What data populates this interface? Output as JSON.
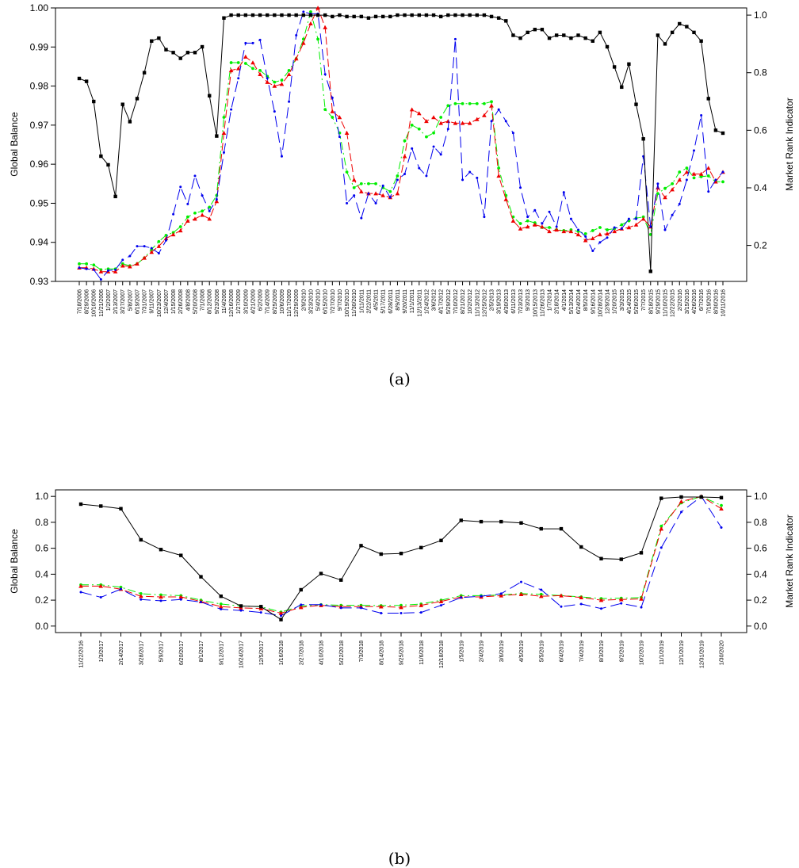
{
  "chart_data": [
    {
      "type": "line",
      "caption": "(a)",
      "ylabel": "Global Balance",
      "ylabel_right": "Market Rank Indicator",
      "ylim": [
        0.93,
        1.0
      ],
      "yticks": [
        0.93,
        0.94,
        0.95,
        0.96,
        0.97,
        0.98,
        0.99,
        1.0
      ],
      "ytick_labels": [
        "0.93",
        "0.94",
        "0.95",
        "0.96",
        "0.97",
        "0.98",
        "0.99",
        "1.00"
      ],
      "ylim_right": [
        0.075,
        1.025
      ],
      "yticks_right": [
        0.2,
        0.4,
        0.6,
        0.8,
        1.0
      ],
      "ytick_labels_right": [
        "0.2",
        "0.4",
        "0.6",
        "0.8",
        "1.0"
      ],
      "x_tick_labels": [
        "7/18/2006",
        "8/29/2006",
        "10/10/2006",
        "11/21/2006",
        "1/2/2007",
        "2/13/2007",
        "3/27/2007",
        "5/8/2007",
        "6/19/2007",
        "7/31/2007",
        "9/11/2007",
        "10/23/2007",
        "12/4/2007",
        "1/15/2008",
        "2/26/2008",
        "4/8/2008",
        "5/20/2008",
        "7/1/2008",
        "8/12/2008",
        "9/23/2008",
        "11/4/2008",
        "12/16/2008",
        "1/27/2009",
        "3/10/2009",
        "4/21/2009",
        "6/2/2009",
        "7/14/2009",
        "8/25/2009",
        "10/6/2009",
        "11/17/2009",
        "12/29/2009",
        "2/9/2010",
        "3/23/2010",
        "5/4/2010",
        "6/15/2010",
        "7/27/2010",
        "9/7/2010",
        "10/19/2010",
        "11/30/2010",
        "1/11/2011",
        "2/22/2011",
        "4/5/2011",
        "5/17/2011",
        "6/28/2011",
        "8/9/2011",
        "9/20/2011",
        "11/1/2011",
        "12/13/2011",
        "1/24/2012",
        "3/6/2012",
        "4/17/2012",
        "5/29/2012",
        "7/10/2012",
        "8/21/2012",
        "10/2/2012",
        "11/13/2012",
        "12/25/2012",
        "2/5/2013",
        "3/19/2013",
        "4/30/2013",
        "6/11/2013",
        "7/23/2013",
        "9/3/2013",
        "10/15/2013",
        "11/26/2013",
        "1/7/2014",
        "2/18/2014",
        "4/1/2014",
        "5/13/2014",
        "6/24/2014",
        "8/5/2014",
        "9/16/2014",
        "10/28/2014",
        "12/9/2014",
        "1/20/2015",
        "3/3/2015",
        "4/14/2015",
        "5/26/2015",
        "7/7/2015",
        "8/18/2015",
        "9/29/2015",
        "11/10/2015",
        "12/22/2015",
        "2/2/2016",
        "3/15/2016",
        "4/26/2016",
        "6/7/2016",
        "7/19/2016",
        "8/30/2016",
        "10/11/2016"
      ],
      "series": [
        {
          "color": "#00ee00",
          "axis": "left",
          "style": "green",
          "values": [
            0.9345,
            0.9345,
            0.9342,
            0.933,
            0.9332,
            0.9332,
            0.9345,
            0.934,
            0.9345,
            0.936,
            0.9382,
            0.9402,
            0.9418,
            0.9425,
            0.944,
            0.9465,
            0.9475,
            0.948,
            0.949,
            0.952,
            0.972,
            0.986,
            0.986,
            0.9858,
            0.9845,
            0.984,
            0.9825,
            0.981,
            0.9815,
            0.984,
            0.987,
            0.992,
            0.999,
            0.992,
            0.974,
            0.972,
            0.968,
            0.958,
            0.954,
            0.955,
            0.955,
            0.955,
            0.954,
            0.953,
            0.957,
            0.966,
            0.97,
            0.969,
            0.967,
            0.968,
            0.972,
            0.975,
            0.9755,
            0.9755,
            0.9755,
            0.9755,
            0.9755,
            0.976,
            0.959,
            0.952,
            0.9465,
            0.9448,
            0.9455,
            0.945,
            0.9438,
            0.9438,
            0.9432,
            0.943,
            0.9432,
            0.9428,
            0.9422,
            0.943,
            0.9438,
            0.9432,
            0.9435,
            0.9445,
            0.9455,
            0.9462,
            0.9465,
            0.942,
            0.9525,
            0.9538,
            0.955,
            0.958,
            0.959,
            0.9565,
            0.9568,
            0.957,
            0.9555,
            0.9555
          ]
        },
        {
          "color": "#ee0000",
          "axis": "left",
          "style": "red",
          "values": [
            0.9335,
            0.9335,
            0.9332,
            0.9325,
            0.9325,
            0.9325,
            0.934,
            0.9338,
            0.9345,
            0.936,
            0.9375,
            0.939,
            0.941,
            0.942,
            0.943,
            0.9455,
            0.946,
            0.947,
            0.946,
            0.9505,
            0.968,
            0.984,
            0.9845,
            0.9875,
            0.986,
            0.983,
            0.981,
            0.98,
            0.9805,
            0.983,
            0.987,
            0.991,
            0.996,
            1.0,
            0.995,
            0.9735,
            0.972,
            0.968,
            0.956,
            0.953,
            0.9525,
            0.9525,
            0.952,
            0.9515,
            0.9525,
            0.962,
            0.974,
            0.973,
            0.971,
            0.972,
            0.9705,
            0.971,
            0.9705,
            0.9705,
            0.9705,
            0.9715,
            0.9725,
            0.975,
            0.957,
            0.951,
            0.9455,
            0.9435,
            0.944,
            0.9445,
            0.944,
            0.9428,
            0.9432,
            0.9428,
            0.9428,
            0.942,
            0.9405,
            0.941,
            0.942,
            0.9422,
            0.9428,
            0.9435,
            0.9438,
            0.9445,
            0.946,
            0.944,
            0.954,
            0.9515,
            0.9535,
            0.956,
            0.958,
            0.9575,
            0.9575,
            0.959,
            0.9555,
            0.958
          ]
        },
        {
          "color": "#0000ee",
          "axis": "left",
          "style": "blue",
          "values": [
            0.9335,
            0.9332,
            0.933,
            0.9305,
            0.9328,
            0.933,
            0.9355,
            0.9365,
            0.939,
            0.939,
            0.9385,
            0.9372,
            0.9405,
            0.9472,
            0.9542,
            0.9498,
            0.957,
            0.952,
            0.948,
            0.951,
            0.963,
            0.974,
            0.982,
            0.991,
            0.991,
            0.9918,
            0.982,
            0.9735,
            0.962,
            0.976,
            0.993,
            0.999,
            0.9985,
            0.9985,
            0.983,
            0.977,
            0.967,
            0.95,
            0.952,
            0.9462,
            0.9525,
            0.95,
            0.9545,
            0.9515,
            0.956,
            0.9575,
            0.964,
            0.959,
            0.957,
            0.9645,
            0.9625,
            0.969,
            0.992,
            0.956,
            0.958,
            0.9565,
            0.9465,
            0.971,
            0.974,
            0.971,
            0.968,
            0.954,
            0.9465,
            0.9482,
            0.9448,
            0.9478,
            0.944,
            0.9528,
            0.946,
            0.9432,
            0.9415,
            0.9378,
            0.94,
            0.9412,
            0.9438,
            0.9435,
            0.946,
            0.946,
            0.962,
            0.944,
            0.955,
            0.9432,
            0.947,
            0.9498,
            0.956,
            0.9635,
            0.9725,
            0.953,
            0.956,
            0.958
          ]
        },
        {
          "color": "#000000",
          "axis": "right",
          "style": "black",
          "values": [
            0.78,
            0.77,
            0.7,
            0.51,
            0.48,
            0.37,
            0.69,
            0.63,
            0.71,
            0.8,
            0.91,
            0.92,
            0.88,
            0.87,
            0.85,
            0.87,
            0.87,
            0.89,
            0.72,
            0.58,
            0.99,
            1.0,
            1.0,
            1.0,
            1.0,
            1.0,
            1.0,
            1.0,
            1.0,
            1.0,
            1.0,
            1.0,
            1.0,
            1.0,
            1.0,
            0.995,
            1.0,
            0.995,
            0.995,
            0.995,
            0.99,
            0.995,
            0.995,
            0.995,
            1.0,
            1.0,
            1.0,
            1.0,
            1.0,
            1.0,
            0.995,
            1.0,
            1.0,
            1.0,
            1.0,
            1.0,
            1.0,
            0.995,
            0.99,
            0.98,
            0.93,
            0.92,
            0.94,
            0.95,
            0.95,
            0.92,
            0.93,
            0.93,
            0.92,
            0.93,
            0.92,
            0.91,
            0.94,
            0.89,
            0.82,
            0.75,
            0.83,
            0.69,
            0.57,
            0.11,
            0.93,
            0.9,
            0.94,
            0.97,
            0.96,
            0.94,
            0.91,
            0.71,
            0.6,
            0.59
          ]
        }
      ]
    },
    {
      "type": "line",
      "caption": "(b)",
      "ylabel": "Global Balance",
      "ylabel_right": "Market Rank Indicator",
      "ylim": [
        -0.05,
        1.05
      ],
      "yticks": [
        0.0,
        0.2,
        0.4,
        0.6,
        0.8,
        1.0
      ],
      "ytick_labels": [
        "0.0",
        "0.2",
        "0.4",
        "0.6",
        "0.8",
        "1.0"
      ],
      "ylim_right": [
        -0.05,
        1.05
      ],
      "yticks_right": [
        0.0,
        0.2,
        0.4,
        0.6,
        0.8,
        1.0
      ],
      "ytick_labels_right": [
        "0.0",
        "0.2",
        "0.4",
        "0.6",
        "0.8",
        "1.0"
      ],
      "x_tick_labels": [
        "11/22/2016",
        "1/3/2017",
        "2/14/2017",
        "3/28/2017",
        "5/9/2017",
        "6/20/2017",
        "8/1/2017",
        "9/12/2017",
        "10/24/2017",
        "12/5/2017",
        "1/16/2018",
        "2/27/2018",
        "4/10/2018",
        "5/22/2018",
        "7/3/2018",
        "8/14/2018",
        "9/25/2018",
        "11/6/2018",
        "12/18/2018",
        "1/5/2019",
        "2/4/2019",
        "3/6/2019",
        "4/5/2019",
        "5/5/2019",
        "6/4/2019",
        "7/4/2019",
        "8/3/2019",
        "9/2/2019",
        "10/2/2019",
        "11/1/2019",
        "12/1/2019",
        "12/31/2019",
        "1/30/2020"
      ],
      "series": [
        {
          "color": "#00ee00",
          "axis": "left",
          "style": "green",
          "values": [
            0.318,
            0.318,
            0.3,
            0.25,
            0.24,
            0.235,
            0.2,
            0.17,
            0.155,
            0.15,
            0.108,
            0.155,
            0.165,
            0.16,
            0.16,
            0.158,
            0.16,
            0.17,
            0.2,
            0.235,
            0.235,
            0.24,
            0.25,
            0.245,
            0.235,
            0.225,
            0.212,
            0.215,
            0.22,
            0.77,
            0.95,
            1.0,
            0.93
          ]
        },
        {
          "color": "#ee0000",
          "axis": "left",
          "style": "red",
          "values": [
            0.308,
            0.308,
            0.285,
            0.23,
            0.225,
            0.225,
            0.19,
            0.15,
            0.14,
            0.135,
            0.1,
            0.145,
            0.16,
            0.15,
            0.15,
            0.15,
            0.145,
            0.16,
            0.19,
            0.225,
            0.225,
            0.235,
            0.245,
            0.23,
            0.235,
            0.22,
            0.2,
            0.205,
            0.21,
            0.75,
            0.96,
            1.0,
            0.905
          ]
        },
        {
          "color": "#0000ee",
          "axis": "left",
          "style": "blue",
          "values": [
            0.262,
            0.222,
            0.285,
            0.205,
            0.195,
            0.205,
            0.185,
            0.13,
            0.12,
            0.105,
            0.08,
            0.165,
            0.165,
            0.14,
            0.14,
            0.1,
            0.1,
            0.105,
            0.16,
            0.22,
            0.23,
            0.25,
            0.34,
            0.28,
            0.15,
            0.17,
            0.135,
            0.175,
            0.145,
            0.605,
            0.88,
            1.0,
            0.76
          ]
        },
        {
          "color": "#000000",
          "axis": "right",
          "style": "black",
          "values": [
            0.94,
            0.925,
            0.905,
            0.665,
            0.59,
            0.545,
            0.38,
            0.23,
            0.155,
            0.15,
            0.05,
            0.28,
            0.405,
            0.355,
            0.62,
            0.555,
            0.56,
            0.605,
            0.66,
            0.815,
            0.805,
            0.805,
            0.795,
            0.75,
            0.75,
            0.61,
            0.52,
            0.515,
            0.565,
            0.985,
            0.995,
            0.995,
            0.99
          ]
        }
      ]
    }
  ]
}
